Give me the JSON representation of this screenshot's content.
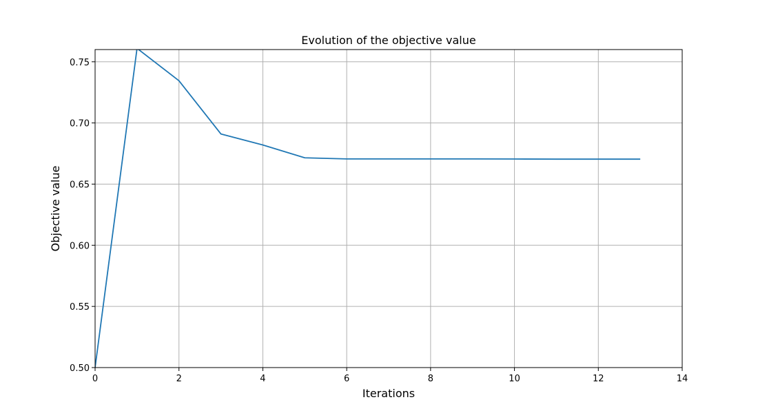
{
  "chart_data": {
    "type": "line",
    "title": "Evolution of the objective value",
    "xlabel": "Iterations",
    "ylabel": "Objective value",
    "xlim": [
      0,
      14
    ],
    "ylim": [
      0.5,
      0.76
    ],
    "grid": true,
    "x_ticks": [
      0,
      2,
      4,
      6,
      8,
      10,
      12,
      14
    ],
    "x_tick_labels": [
      "0",
      "2",
      "4",
      "6",
      "8",
      "10",
      "12",
      "14"
    ],
    "y_ticks": [
      0.5,
      0.55,
      0.6,
      0.65,
      0.7,
      0.75
    ],
    "y_tick_labels": [
      "0.50",
      "0.55",
      "0.60",
      "0.65",
      "0.70",
      "0.75"
    ],
    "series": [
      {
        "color": "#1f77b4",
        "x": [
          0,
          1,
          2,
          3,
          4,
          5,
          6,
          7,
          8,
          9,
          10,
          11,
          12,
          13
        ],
        "y": [
          0.5,
          0.761,
          0.7345,
          0.691,
          0.682,
          0.6715,
          0.6706,
          0.6706,
          0.6706,
          0.6706,
          0.6705,
          0.6704,
          0.6704,
          0.6704
        ]
      }
    ]
  }
}
